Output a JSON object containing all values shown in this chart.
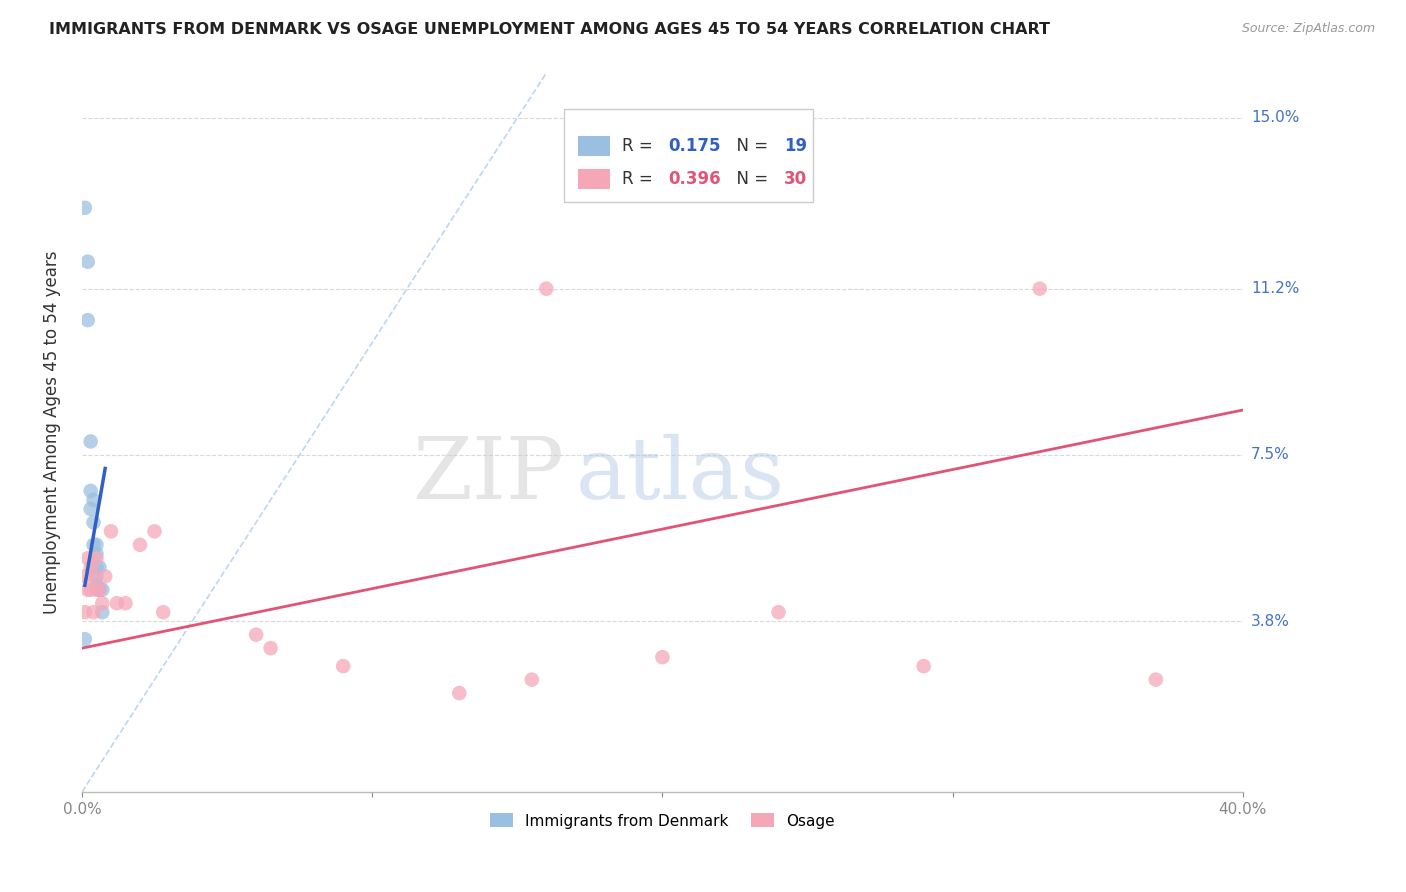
{
  "title": "IMMIGRANTS FROM DENMARK VS OSAGE UNEMPLOYMENT AMONG AGES 45 TO 54 YEARS CORRELATION CHART",
  "source": "Source: ZipAtlas.com",
  "ylabel": "Unemployment Among Ages 45 to 54 years",
  "xlim": [
    0.0,
    0.4
  ],
  "ylim": [
    0.0,
    0.16
  ],
  "xticks": [
    0.0,
    0.1,
    0.2,
    0.3,
    0.4
  ],
  "xticklabels": [
    "0.0%",
    "",
    "",
    "",
    "40.0%"
  ],
  "ytick_positions": [
    0.038,
    0.075,
    0.112,
    0.15
  ],
  "ytick_labels": [
    "3.8%",
    "7.5%",
    "11.2%",
    "15.0%"
  ],
  "background_color": "#ffffff",
  "grid_color": "#d0d0d0",
  "blue_dot_color": "#9bbfe0",
  "pink_dot_color": "#f5a7b8",
  "blue_line_color": "#3060c0",
  "pink_line_color": "#e05575",
  "diagonal_color": "#b8d0ee",
  "legend_blue_R": "0.175",
  "legend_blue_N": "19",
  "legend_pink_R": "0.396",
  "legend_pink_N": "30",
  "watermark_zip": "ZIP",
  "watermark_atlas": "atlas",
  "denmark_x": [
    0.001,
    0.002,
    0.002,
    0.003,
    0.003,
    0.003,
    0.004,
    0.004,
    0.004,
    0.005,
    0.005,
    0.005,
    0.005,
    0.005,
    0.006,
    0.006,
    0.007,
    0.007,
    0.001
  ],
  "denmark_y": [
    0.13,
    0.105,
    0.118,
    0.078,
    0.067,
    0.063,
    0.065,
    0.06,
    0.055,
    0.055,
    0.053,
    0.05,
    0.048,
    0.046,
    0.05,
    0.045,
    0.045,
    0.04,
    0.034
  ],
  "osage_x": [
    0.001,
    0.001,
    0.002,
    0.002,
    0.003,
    0.003,
    0.004,
    0.004,
    0.005,
    0.005,
    0.006,
    0.007,
    0.008,
    0.01,
    0.012,
    0.015,
    0.02,
    0.025,
    0.028,
    0.06,
    0.065,
    0.09,
    0.13,
    0.155,
    0.16,
    0.2,
    0.24,
    0.29,
    0.33,
    0.37
  ],
  "osage_y": [
    0.048,
    0.04,
    0.052,
    0.045,
    0.05,
    0.045,
    0.048,
    0.04,
    0.052,
    0.045,
    0.045,
    0.042,
    0.048,
    0.058,
    0.042,
    0.042,
    0.055,
    0.058,
    0.04,
    0.035,
    0.032,
    0.028,
    0.022,
    0.025,
    0.112,
    0.03,
    0.04,
    0.028,
    0.112,
    0.025
  ],
  "blue_line_x": [
    0.001,
    0.008
  ],
  "blue_line_y": [
    0.046,
    0.072
  ],
  "pink_line_x": [
    0.0,
    0.4
  ],
  "pink_line_y": [
    0.032,
    0.085
  ]
}
